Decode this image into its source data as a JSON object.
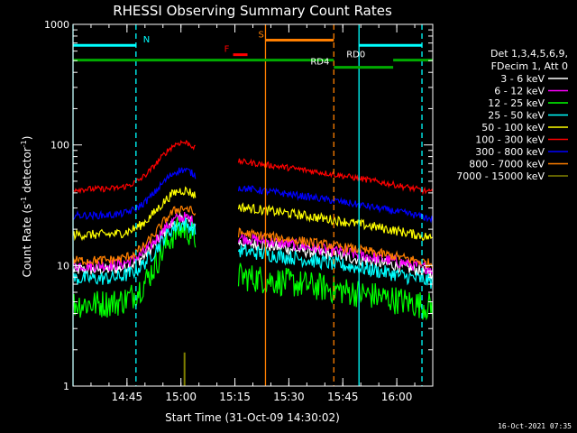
{
  "chart_data": {
    "type": "line",
    "title": "RHESSI Observing Summary Count Rates",
    "xlabel": "Start Time (31-Oct-09 14:30:02)",
    "ylabel_main": "Count Rate (s",
    "ylabel_sup1": "-1",
    "ylabel_mid": " detector",
    "ylabel_sup2": "-1",
    "ylabel_end": ")",
    "x_ticks": [
      "14:45",
      "15:00",
      "15:15",
      "15:30",
      "15:45",
      "16:00"
    ],
    "x_tick_minutes": [
      15,
      30,
      45,
      60,
      75,
      90
    ],
    "xlim_minutes": [
      0,
      100
    ],
    "y_scale": "log",
    "ylim": [
      1,
      1000
    ],
    "y_ticks": [
      "1",
      "10",
      "100",
      "1000"
    ],
    "y_tick_values": [
      1,
      10,
      100,
      1000
    ],
    "legend": {
      "header1": "Det 1,3,4,5,6,9,",
      "header2": "FDecim 1, Att 0",
      "placement": "right"
    },
    "series": [
      {
        "name": "3 - 6 keV",
        "color": "#ffffff",
        "base": 9.2,
        "peak": 24,
        "noise": 0.05
      },
      {
        "name": "6 - 12 keV",
        "color": "#ff00ff",
        "base": 10,
        "peak": 25,
        "noise": 0.05
      },
      {
        "name": "12 - 25 keV",
        "color": "#00ff00",
        "base": 4.8,
        "peak": 20,
        "noise": 0.12
      },
      {
        "name": "25 - 50 keV",
        "color": "#00ffff",
        "base": 7.8,
        "peak": 22,
        "noise": 0.06
      },
      {
        "name": "50 - 100 keV",
        "color": "#ffff00",
        "base": 18,
        "peak": 42,
        "noise": 0.04
      },
      {
        "name": "100 - 300 keV",
        "color": "#ff0000",
        "base": 43,
        "peak": 105,
        "noise": 0.025
      },
      {
        "name": "300 - 800 keV",
        "color": "#0000ff",
        "base": 26,
        "peak": 62,
        "noise": 0.03
      },
      {
        "name": "800 - 7000 keV",
        "color": "#ff7f00",
        "base": 11,
        "peak": 30,
        "noise": 0.04
      },
      {
        "name": "7000 - 15000 keV",
        "color": "#808000",
        "base": 1.0,
        "peak": 1.0,
        "noise": 0
      }
    ],
    "data_gap_minutes": [
      34,
      46
    ],
    "olive_spike_minutes": 31,
    "olive_spike_value": 1.9,
    "vertical_lines": [
      {
        "minute": 0,
        "color": "#00ffff",
        "style": "solid"
      },
      {
        "minute": 17.5,
        "color": "#00ffff",
        "style": "dashed"
      },
      {
        "minute": 53.5,
        "color": "#ff7f00",
        "style": "solid"
      },
      {
        "minute": 72.5,
        "color": "#ff7f00",
        "style": "dashed"
      },
      {
        "minute": 79.5,
        "color": "#00ffff",
        "style": "solid"
      },
      {
        "minute": 97,
        "color": "#00ffff",
        "style": "dashed"
      }
    ],
    "flag_bars": [
      {
        "label": "N",
        "color": "#00ffff",
        "level": 670,
        "segments": [
          [
            0,
            17.5
          ],
          [
            79.5,
            97
          ]
        ],
        "label_minute": 19.5
      },
      {
        "label": "S",
        "color": "#ff7f00",
        "level": 740,
        "segments": [
          [
            53.5,
            72.5
          ]
        ],
        "label_minute": 51.5
      },
      {
        "label": "F",
        "color": "#ff0000",
        "level": 560,
        "segments": [
          [
            44.5,
            48.5
          ]
        ],
        "label_minute": 42
      },
      {
        "label": "RD0",
        "color": "#00aa00",
        "level": 505,
        "segments": [
          [
            0,
            72.5
          ],
          [
            89,
            100
          ]
        ],
        "label_minute": 76
      },
      {
        "label": "RD4",
        "color": "#00aa00",
        "level": 440,
        "segments": [
          [
            72.5,
            89
          ]
        ],
        "label_minute": 66
      }
    ]
  },
  "timestamp": "16-Oct-2021 07:35"
}
